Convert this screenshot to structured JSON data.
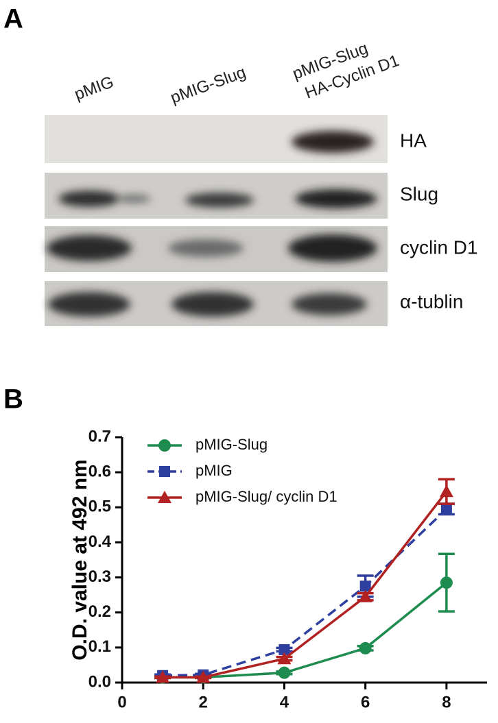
{
  "panel_labels": [
    "A",
    "B"
  ],
  "blot": {
    "lanes": [
      [
        "pMIG"
      ],
      [
        "pMIG-Slug"
      ],
      [
        "pMIG-Slug",
        "HA-Cyclin D1"
      ]
    ],
    "rows": [
      "HA",
      "Slug",
      "cyclin D1",
      "α-tublin"
    ]
  },
  "chart_data": {
    "type": "line",
    "y_label": "O.D. value at 492 nm",
    "x": [
      1,
      2,
      4,
      6,
      8
    ],
    "series": [
      {
        "name": "pMIG-Slug",
        "color": "#1e8c4e",
        "marker": "circle",
        "dash": "solid",
        "values": [
          0.015,
          0.015,
          0.028,
          0.098,
          0.285
        ],
        "errors": [
          0.002,
          0.002,
          0.004,
          0.006,
          0.082
        ]
      },
      {
        "name": "pMIG",
        "color": "#2e3fa0",
        "marker": "square",
        "dash": "dashed",
        "values": [
          0.02,
          0.022,
          0.094,
          0.275,
          0.495
        ],
        "errors": [
          0.003,
          0.003,
          0.005,
          0.03,
          0.015
        ]
      },
      {
        "name": "pMIG-Slug/ cyclin D1",
        "color": "#b22222",
        "marker": "triangle",
        "dash": "solid",
        "values": [
          0.015,
          0.015,
          0.068,
          0.245,
          0.545
        ],
        "errors": [
          0.002,
          0.002,
          0.005,
          0.01,
          0.035
        ]
      }
    ],
    "xlim": [
      0,
      9
    ],
    "ylim": [
      0,
      0.7
    ],
    "xticks": [
      0,
      2,
      4,
      6,
      8
    ],
    "yticks": [
      {
        "value": 0,
        "label": "0.0"
      },
      0.1,
      0.2,
      0.3,
      0.4,
      0.5,
      0.6,
      0.7
    ],
    "legend": "upper left"
  }
}
